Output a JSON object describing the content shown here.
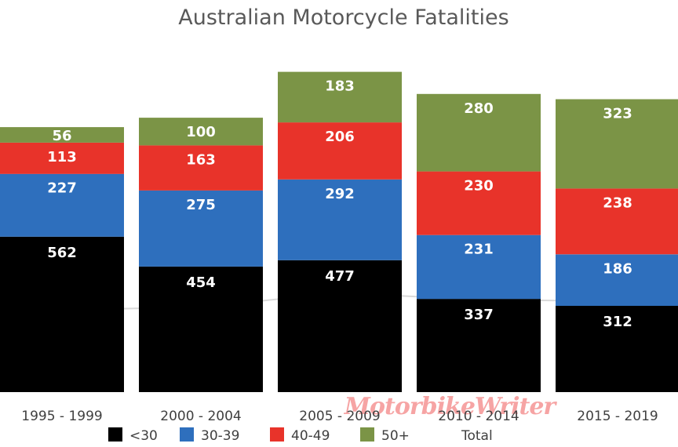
{
  "chart_data": {
    "type": "bar",
    "stacked": true,
    "title": "Australian Motorcycle Fatalities",
    "categories": [
      "1995 - 1999",
      "2000 - 2004",
      "2005 - 2009",
      "2010 - 2014",
      "2015 - 2019"
    ],
    "series": [
      {
        "name": "<30",
        "color": "#000000",
        "values": [
          562,
          454,
          477,
          337,
          312
        ]
      },
      {
        "name": "30-39",
        "color": "#2e6fbd",
        "values": [
          227,
          275,
          292,
          231,
          186
        ]
      },
      {
        "name": "40-49",
        "color": "#e8332a",
        "values": [
          113,
          163,
          206,
          230,
          238
        ]
      },
      {
        "name": "50+",
        "color": "#7b9446",
        "values": [
          56,
          100,
          183,
          280,
          323
        ]
      }
    ],
    "extra_legend": [
      {
        "name": "Total",
        "color": "#cccccc"
      }
    ],
    "totals": [
      958,
      992,
      1158,
      1078,
      1059
    ],
    "ylim": [
      0,
      1395
    ],
    "grid": false,
    "legend_position": "bottom",
    "xlabel": "",
    "ylabel": ""
  },
  "watermark": {
    "text": "MotorbikeWriter",
    "color": "#f05a5a"
  }
}
